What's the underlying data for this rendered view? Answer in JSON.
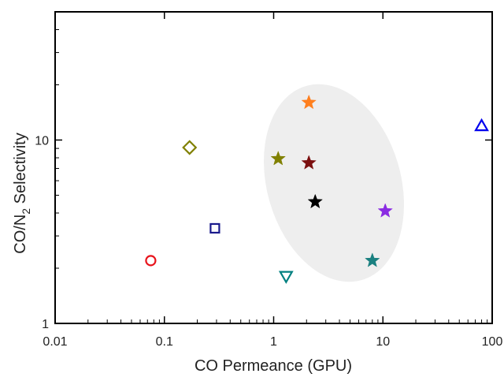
{
  "chart_data": {
    "type": "scatter",
    "title": "",
    "xlabel": "CO Permeance (GPU)",
    "ylabel_main": "CO/N",
    "ylabel_sub": "2",
    "ylabel_rest": " Selectivity",
    "x_scale": "log",
    "y_scale": "log",
    "xlim": [
      0.01,
      100
    ],
    "ylim": [
      1,
      50
    ],
    "x_ticks": [
      {
        "value": 0.01,
        "label": "0.01"
      },
      {
        "value": 0.1,
        "label": "0.1"
      },
      {
        "value": 1,
        "label": "1"
      },
      {
        "value": 10,
        "label": "10"
      },
      {
        "value": 100,
        "label": "100"
      }
    ],
    "y_ticks": [
      {
        "value": 1,
        "label": "1"
      },
      {
        "value": 10,
        "label": "10"
      }
    ],
    "grid": false,
    "legend": "none",
    "highlight_region": {
      "shape": "ellipse",
      "color": "#eeeeee"
    },
    "points": [
      {
        "x": 0.075,
        "y": 2.2,
        "marker": "circle-open",
        "color": "#e8141c"
      },
      {
        "x": 0.17,
        "y": 9.1,
        "marker": "diamond-open",
        "color": "#808000"
      },
      {
        "x": 0.29,
        "y": 3.3,
        "marker": "square-open",
        "color": "#1a1a8c"
      },
      {
        "x": 1.3,
        "y": 1.8,
        "marker": "triangle-down-open",
        "color": "#008080"
      },
      {
        "x": 80,
        "y": 12,
        "marker": "triangle-up-open",
        "color": "#0000ee"
      },
      {
        "x": 2.1,
        "y": 16,
        "marker": "star",
        "color": "#ff7f1e"
      },
      {
        "x": 1.1,
        "y": 7.9,
        "marker": "star",
        "color": "#808000"
      },
      {
        "x": 2.1,
        "y": 7.5,
        "marker": "star",
        "color": "#7b0f0f"
      },
      {
        "x": 2.4,
        "y": 4.6,
        "marker": "star",
        "color": "#000000"
      },
      {
        "x": 10.5,
        "y": 4.1,
        "marker": "star",
        "color": "#8a2be2"
      },
      {
        "x": 8,
        "y": 2.2,
        "marker": "star",
        "color": "#1a8080"
      }
    ]
  }
}
